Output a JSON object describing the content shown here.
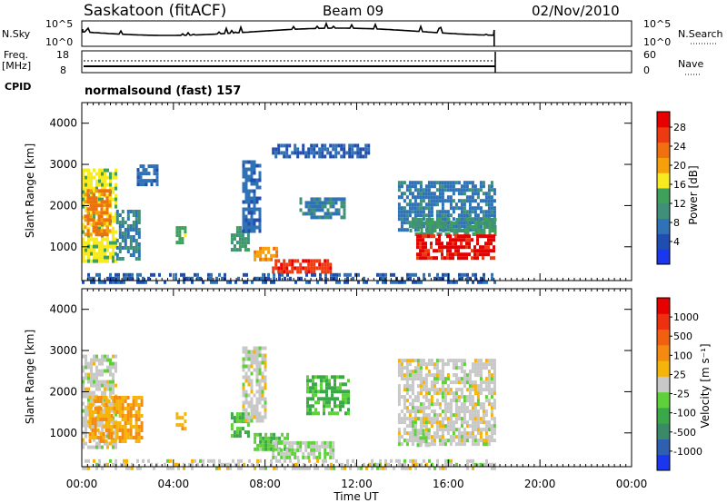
{
  "header": {
    "station": "Saskatoon (fitACF)",
    "beam": "Beam 09",
    "date": "02/Nov/2010"
  },
  "status_panels": {
    "nsky_label": "N.Sky",
    "nsky_ticks": [
      "10^5",
      "10^0"
    ],
    "nsearch_label": "N.Search",
    "nsearch_ticks": [
      "10^5",
      "10^0"
    ],
    "freq_label": "Freq.",
    "freq_unit": "[MHz]",
    "freq_ticks": [
      "18",
      "8"
    ],
    "nave_label": "Nave",
    "nave_ticks": [
      "60",
      "0"
    ],
    "cpid_label": "CPID",
    "cpid_text": "normalsound (fast) 157"
  },
  "colors": {
    "power_scale": [
      "#1a36ee",
      "#1f4db0",
      "#2f72b5",
      "#3f8f7a",
      "#3ea05a",
      "#f8ea20",
      "#f5a00a",
      "#f07010",
      "#ee3a10",
      "#e80000"
    ],
    "velocity_scale": [
      "#1a36ee",
      "#2f5fb0",
      "#3a8a6a",
      "#3aa848",
      "#5ed13a",
      "#c8c8c8",
      "#f5b40a",
      "#f58a10",
      "#f06010",
      "#ee3010",
      "#e80000"
    ]
  },
  "chart_data": [
    {
      "type": "heatmap",
      "name": "power",
      "ylabel": "Slant Range [km]",
      "xlabel": "Time UT",
      "x_ticks": [
        "00:00",
        "04:00",
        "08:00",
        "12:00",
        "16:00",
        "20:00",
        "00:00"
      ],
      "x_range_hours": [
        0,
        24
      ],
      "data_end_hours": 18,
      "y_ticks": [
        1000,
        2000,
        3000,
        4000
      ],
      "ylim": [
        180,
        4500
      ],
      "colorbar": {
        "label": "Power [dB]",
        "ticks": [
          "28",
          "24",
          "20",
          "16",
          "12",
          "8",
          "4"
        ],
        "range": [
          0,
          30
        ]
      },
      "regions": [
        {
          "t0": 0.0,
          "t1": 1.5,
          "r0": 650,
          "r1": 2900,
          "value": 16
        },
        {
          "t0": 0.1,
          "t1": 1.2,
          "r0": 1300,
          "r1": 2400,
          "value": 22
        },
        {
          "t0": 1.5,
          "t1": 2.5,
          "r0": 700,
          "r1": 1900,
          "value": 9
        },
        {
          "t0": 2.4,
          "t1": 3.3,
          "r0": 2500,
          "r1": 3000,
          "value": 7
        },
        {
          "t0": 4.1,
          "t1": 4.5,
          "r0": 1100,
          "r1": 1500,
          "value": 14
        },
        {
          "t0": 6.5,
          "t1": 7.3,
          "r0": 900,
          "r1": 1500,
          "value": 12
        },
        {
          "t0": 7.0,
          "t1": 7.8,
          "r0": 1400,
          "r1": 3100,
          "value": 7
        },
        {
          "t0": 7.5,
          "t1": 8.5,
          "r0": 700,
          "r1": 1000,
          "value": 20
        },
        {
          "t0": 8.3,
          "t1": 10.8,
          "r0": 430,
          "r1": 700,
          "value": 26
        },
        {
          "t0": 9.5,
          "t1": 11.5,
          "r0": 1700,
          "r1": 2200,
          "value": 9
        },
        {
          "t0": 8.3,
          "t1": 12.5,
          "r0": 3200,
          "r1": 3500,
          "value": 6
        },
        {
          "t0": 13.8,
          "t1": 18.0,
          "r0": 1400,
          "r1": 2600,
          "value": 8
        },
        {
          "t0": 14.3,
          "t1": 18.0,
          "r0": 1300,
          "r1": 1700,
          "value": 12
        },
        {
          "t0": 14.6,
          "t1": 18.0,
          "r0": 700,
          "r1": 1300,
          "value": 28
        },
        {
          "t0": 0.0,
          "t1": 18.0,
          "r0": 180,
          "r1": 360,
          "value": 6
        }
      ]
    },
    {
      "type": "heatmap",
      "name": "velocity",
      "ylabel": "Slant Range [km]",
      "xlabel": "Time UT",
      "x_ticks": [
        "00:00",
        "04:00",
        "08:00",
        "12:00",
        "16:00",
        "20:00",
        "00:00"
      ],
      "x_range_hours": [
        0,
        24
      ],
      "data_end_hours": 18,
      "y_ticks": [
        1000,
        2000,
        3000,
        4000
      ],
      "ylim": [
        180,
        4500
      ],
      "colorbar": {
        "label": "Velocity [m s⁻¹]",
        "ticks": [
          "1000",
          "500",
          "100",
          "25",
          "-25",
          "-100",
          "-500",
          "-1000"
        ],
        "range": [
          -1000,
          1000
        ]
      },
      "regions": [
        {
          "t0": 0.0,
          "t1": 1.5,
          "r0": 650,
          "r1": 2900,
          "value": 0
        },
        {
          "t0": 0.3,
          "t1": 2.6,
          "r0": 800,
          "r1": 1900,
          "value": 250
        },
        {
          "t0": 4.1,
          "t1": 4.5,
          "r0": 1100,
          "r1": 1500,
          "value": 200
        },
        {
          "t0": 6.5,
          "t1": 7.3,
          "r0": 900,
          "r1": 1500,
          "value": -300
        },
        {
          "t0": 7.0,
          "t1": 8.0,
          "r0": 1300,
          "r1": 3100,
          "value": 0
        },
        {
          "t0": 7.5,
          "t1": 9.0,
          "r0": 600,
          "r1": 1000,
          "value": -200
        },
        {
          "t0": 8.3,
          "t1": 11.0,
          "r0": 430,
          "r1": 800,
          "value": -70
        },
        {
          "t0": 9.8,
          "t1": 11.6,
          "r0": 1500,
          "r1": 2400,
          "value": -300
        },
        {
          "t0": 13.8,
          "t1": 18.0,
          "r0": 700,
          "r1": 2800,
          "value": 0
        },
        {
          "t0": 14.5,
          "t1": 15.2,
          "r0": 700,
          "r1": 1100,
          "value": -70
        },
        {
          "t0": 0.0,
          "t1": 18.0,
          "r0": 180,
          "r1": 360,
          "value": 0
        }
      ]
    }
  ]
}
